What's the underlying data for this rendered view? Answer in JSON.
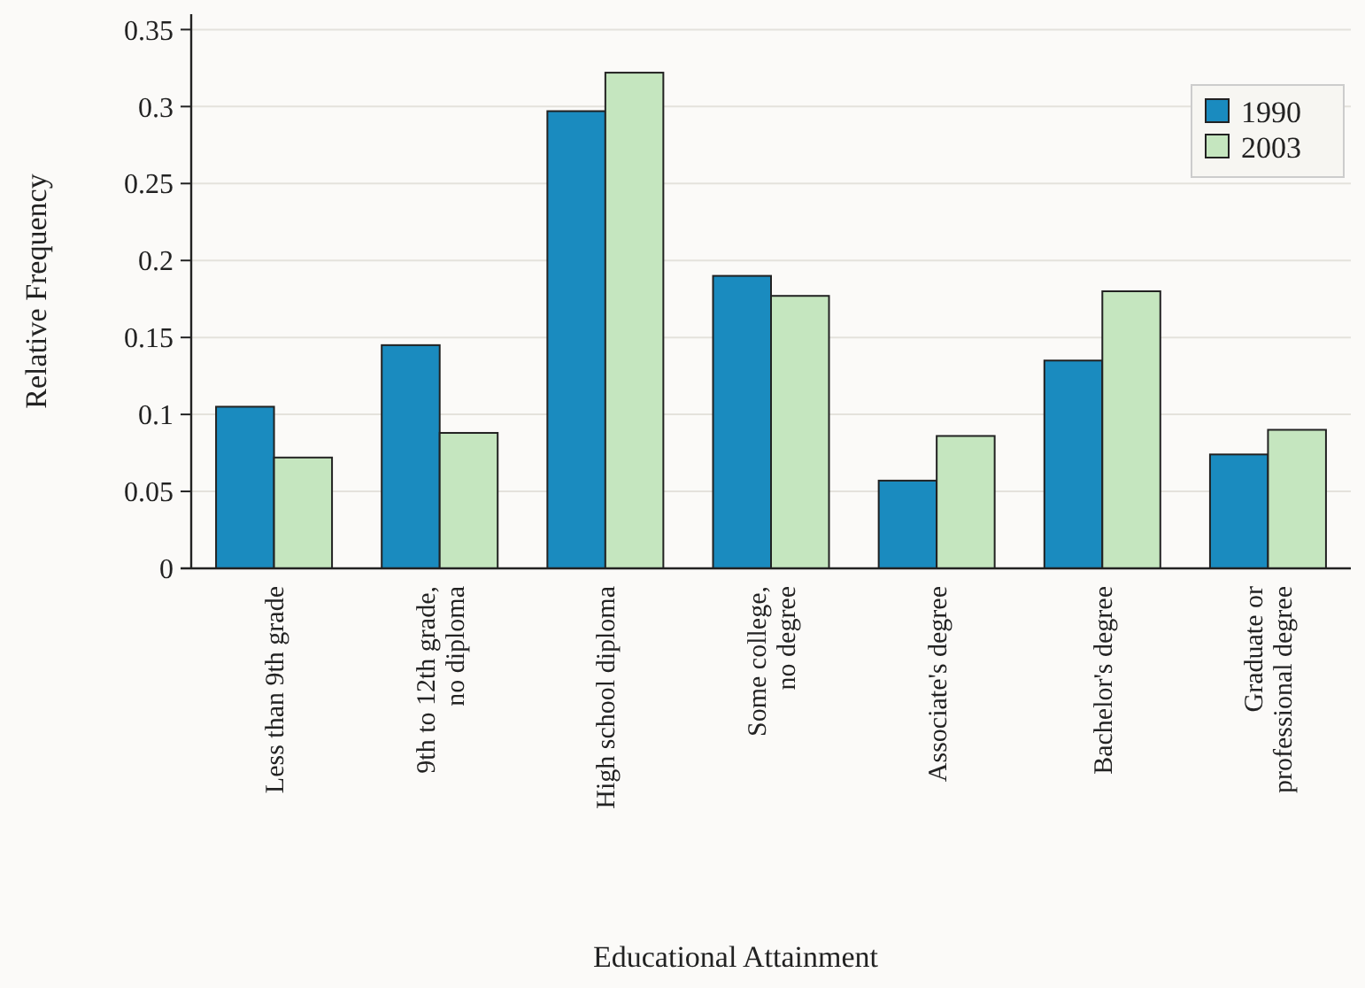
{
  "chart_data": {
    "type": "bar",
    "xlabel": "Educational Attainment",
    "ylabel": "Relative Frequency",
    "categories": [
      "Less than 9th grade",
      "9th to 12th grade,\nno diploma",
      "High school diploma",
      "Some college,\nno degree",
      "Associate's degree",
      "Bachelor's degree",
      "Graduate or\nprofessional degree"
    ],
    "series": [
      {
        "name": "1990",
        "color": "#1a8bbf",
        "values": [
          0.105,
          0.145,
          0.297,
          0.19,
          0.057,
          0.135,
          0.074
        ]
      },
      {
        "name": "2003",
        "color": "#c5e6bf",
        "values": [
          0.072,
          0.088,
          0.322,
          0.177,
          0.086,
          0.18,
          0.09
        ]
      }
    ],
    "ylim": [
      0,
      0.36
    ],
    "yticks": [
      0,
      0.05,
      0.1,
      0.15,
      0.2,
      0.25,
      0.3,
      0.35
    ],
    "grid": "y",
    "legend": "top right"
  }
}
